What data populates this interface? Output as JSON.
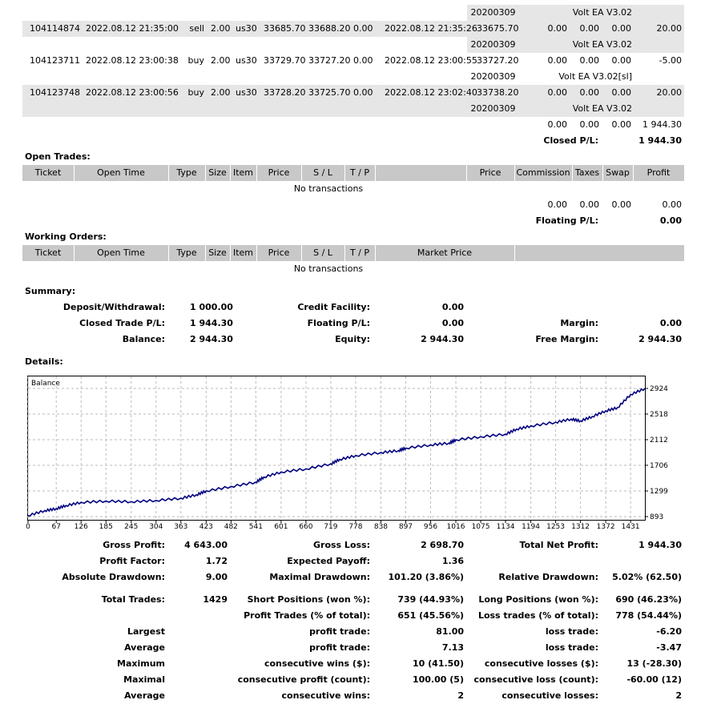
{
  "deals": {
    "rows": [
      {
        "type": "extra",
        "comment": "Volt EA V3.02",
        "magic": "20200309"
      },
      {
        "type": "trade",
        "ticket": "104114874",
        "open_time": "2022.08.12 21:35:00",
        "dir": "sell",
        "size": "2.00",
        "item": "us30",
        "price": "33685.70",
        "sl": "33688.20",
        "tp": "0.00",
        "close_time": "2022.08.12 21:35:26",
        "close_price": "33675.70",
        "commission": "0.00",
        "taxes": "0.00",
        "swap": "0.00",
        "profit": "20.00"
      },
      {
        "type": "extra",
        "comment": "Volt EA V3.02",
        "magic": "20200309"
      },
      {
        "type": "trade",
        "ticket": "104123711",
        "open_time": "2022.08.12 23:00:38",
        "dir": "buy",
        "size": "2.00",
        "item": "us30",
        "price": "33729.70",
        "sl": "33727.20",
        "tp": "0.00",
        "close_time": "2022.08.12 23:00:55",
        "close_price": "33727.20",
        "commission": "0.00",
        "taxes": "0.00",
        "swap": "0.00",
        "profit": "-5.00"
      },
      {
        "type": "extra",
        "comment": "Volt EA V3.02[sl]",
        "magic": "20200309"
      },
      {
        "type": "trade",
        "ticket": "104123748",
        "open_time": "2022.08.12 23:00:56",
        "dir": "buy",
        "size": "2.00",
        "item": "us30",
        "price": "33728.20",
        "sl": "33725.70",
        "tp": "0.00",
        "close_time": "2022.08.12 23:02:40",
        "close_price": "33738.20",
        "commission": "0.00",
        "taxes": "0.00",
        "swap": "0.00",
        "profit": "20.00"
      },
      {
        "type": "extra",
        "comment": "Volt EA V3.02",
        "magic": "20200309"
      }
    ],
    "totals": {
      "commission": "0.00",
      "taxes": "0.00",
      "swap": "0.00",
      "profit": "1 944.30"
    },
    "closed_label": "Closed P/L:",
    "closed_value": "1 944.30"
  },
  "open_trades": {
    "title": "Open Trades:",
    "headers": {
      "ticket": "Ticket",
      "open_time": "Open Time",
      "type": "Type",
      "size": "Size",
      "item": "Item",
      "price": "Price",
      "sl": "S / L",
      "tp": "T / P",
      "price2": "Price",
      "commission": "Commission",
      "taxes": "Taxes",
      "swap": "Swap",
      "profit": "Profit"
    },
    "empty": "No transactions",
    "totals": {
      "commission": "0.00",
      "taxes": "0.00",
      "swap": "0.00",
      "profit": "0.00"
    },
    "floating_label": "Floating P/L:",
    "floating_value": "0.00"
  },
  "working_orders": {
    "title": "Working Orders:",
    "headers": {
      "ticket": "Ticket",
      "open_time": "Open Time",
      "type": "Type",
      "size": "Size",
      "item": "Item",
      "price": "Price",
      "sl": "S / L",
      "tp": "T / P",
      "market_price": "Market Price"
    },
    "empty": "No transactions"
  },
  "summary": {
    "title": "Summary:",
    "deposit_label": "Deposit/Withdrawal:",
    "deposit": "1 000.00",
    "credit_label": "Credit Facility:",
    "credit": "0.00",
    "closed_label": "Closed Trade P/L:",
    "closed": "1 944.30",
    "floating_label": "Floating P/L:",
    "floating": "0.00",
    "margin_label": "Margin:",
    "margin": "0.00",
    "balance_label": "Balance:",
    "balance": "2 944.30",
    "equity_label": "Equity:",
    "equity": "2 944.30",
    "free_margin_label": "Free Margin:",
    "free_margin": "2 944.30"
  },
  "details": {
    "title": "Details:"
  },
  "chart_data": {
    "type": "line",
    "title": "Balance",
    "x_ticks": [
      0,
      67,
      126,
      185,
      245,
      304,
      363,
      423,
      482,
      541,
      601,
      660,
      719,
      778,
      838,
      897,
      956,
      1016,
      1075,
      1134,
      1194,
      1253,
      1312,
      1372,
      1431
    ],
    "y_ticks": [
      2924,
      2518,
      2112,
      1706,
      1299,
      893
    ],
    "xlim": [
      0,
      1465
    ],
    "ylim": [
      893,
      2924
    ],
    "series": [
      {
        "color": "#000080",
        "x": [
          0,
          40,
          67,
          90,
          126,
          185,
          245,
          304,
          363,
          400,
          423,
          482,
          541,
          560,
          601,
          660,
          719,
          740,
          778,
          838,
          880,
          897,
          956,
          1000,
          1016,
          1075,
          1134,
          1160,
          1194,
          1253,
          1290,
          1312,
          1340,
          1372,
          1400,
          1431,
          1465
        ],
        "y": [
          910,
          990,
          1020,
          1070,
          1120,
          1140,
          1130,
          1150,
          1185,
          1240,
          1300,
          1370,
          1440,
          1520,
          1600,
          1650,
          1730,
          1800,
          1860,
          1910,
          1940,
          1980,
          2030,
          2060,
          2110,
          2160,
          2200,
          2280,
          2330,
          2390,
          2440,
          2410,
          2480,
          2570,
          2620,
          2830,
          2924
        ]
      }
    ]
  },
  "stats": [
    {
      "l1": "Gross Profit:",
      "v1": "4 643.00",
      "l2": "Gross Loss:",
      "v2": "2 698.70",
      "l3": "Total Net Profit:",
      "v3": "1 944.30"
    },
    {
      "l1": "Profit Factor:",
      "v1": "1.72",
      "l2": "Expected Payoff:",
      "v2": "1.36",
      "l3": "",
      "v3": ""
    },
    {
      "l1": "Absolute Drawdown:",
      "v1": "9.00",
      "l2": "Maximal Drawdown:",
      "v2": "101.20 (3.86%)",
      "l3": "Relative Drawdown:",
      "v3": "5.02% (62.50)"
    },
    {
      "l1": "Total Trades:",
      "v1": "1429",
      "l2": "Short Positions (won %):",
      "v2": "739 (44.93%)",
      "l3": "Long Positions (won %):",
      "v3": "690 (46.23%)"
    },
    {
      "l1": "",
      "v1": "",
      "l2": "Profit Trades (% of total):",
      "v2": "651 (45.56%)",
      "l3": "Loss trades (% of total):",
      "v3": "778 (54.44%)"
    },
    {
      "l1": "Largest",
      "v1": "",
      "l2": "profit trade:",
      "v2": "81.00",
      "l3": "loss trade:",
      "v3": "-6.20"
    },
    {
      "l1": "Average",
      "v1": "",
      "l2": "profit trade:",
      "v2": "7.13",
      "l3": "loss trade:",
      "v3": "-3.47"
    },
    {
      "l1": "Maximum",
      "v1": "",
      "l2": "consecutive wins ($):",
      "v2": "10 (41.50)",
      "l3": "consecutive losses ($):",
      "v3": "13 (-28.30)"
    },
    {
      "l1": "Maximal",
      "v1": "",
      "l2": "consecutive profit (count):",
      "v2": "100.00 (5)",
      "l3": "consecutive loss (count):",
      "v3": "-60.00 (12)"
    },
    {
      "l1": "Average",
      "v1": "",
      "l2": "consecutive wins:",
      "v2": "2",
      "l3": "consecutive losses:",
      "v3": "2"
    }
  ]
}
